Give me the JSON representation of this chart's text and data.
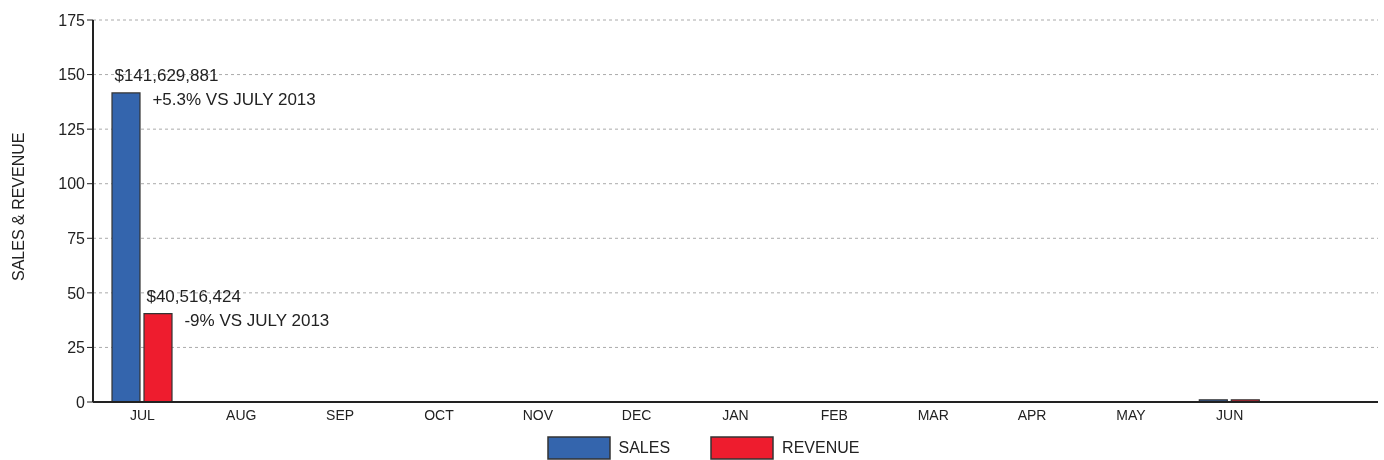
{
  "chart_data": {
    "type": "bar",
    "ylabel": "SALES & REVENUE",
    "categories": [
      "JUL",
      "AUG",
      "SEP",
      "OCT",
      "NOV",
      "DEC",
      "JAN",
      "FEB",
      "MAR",
      "APR",
      "MAY",
      "JUN",
      null
    ],
    "series": [
      {
        "name": "SALES",
        "color": "#3465ad",
        "values": [
          141.6,
          0,
          0,
          0,
          0,
          0,
          0,
          0,
          0,
          0,
          0,
          1,
          0
        ]
      },
      {
        "name": "REVENUE",
        "color": "#ee1c2e",
        "values": [
          40.5,
          0,
          0,
          0,
          0,
          0,
          0,
          0,
          0,
          0,
          0,
          1,
          0
        ]
      }
    ],
    "ylim": [
      0,
      175
    ],
    "yticks": [
      0,
      25,
      50,
      75,
      100,
      125,
      150,
      175
    ],
    "grid": "y",
    "legend": "bottom",
    "annotations": [
      {
        "text": "$141,629,881",
        "x": "JUL",
        "y": 141.6
      },
      {
        "text": "+5.3% VS JULY 2013",
        "x": "JUL",
        "y": 141.6
      },
      {
        "text": "$40,516,424",
        "x": "JUL",
        "y": 40.5
      },
      {
        "text": "-9% VS JULY 2013",
        "x": "JUL",
        "y": 40.5
      }
    ]
  }
}
